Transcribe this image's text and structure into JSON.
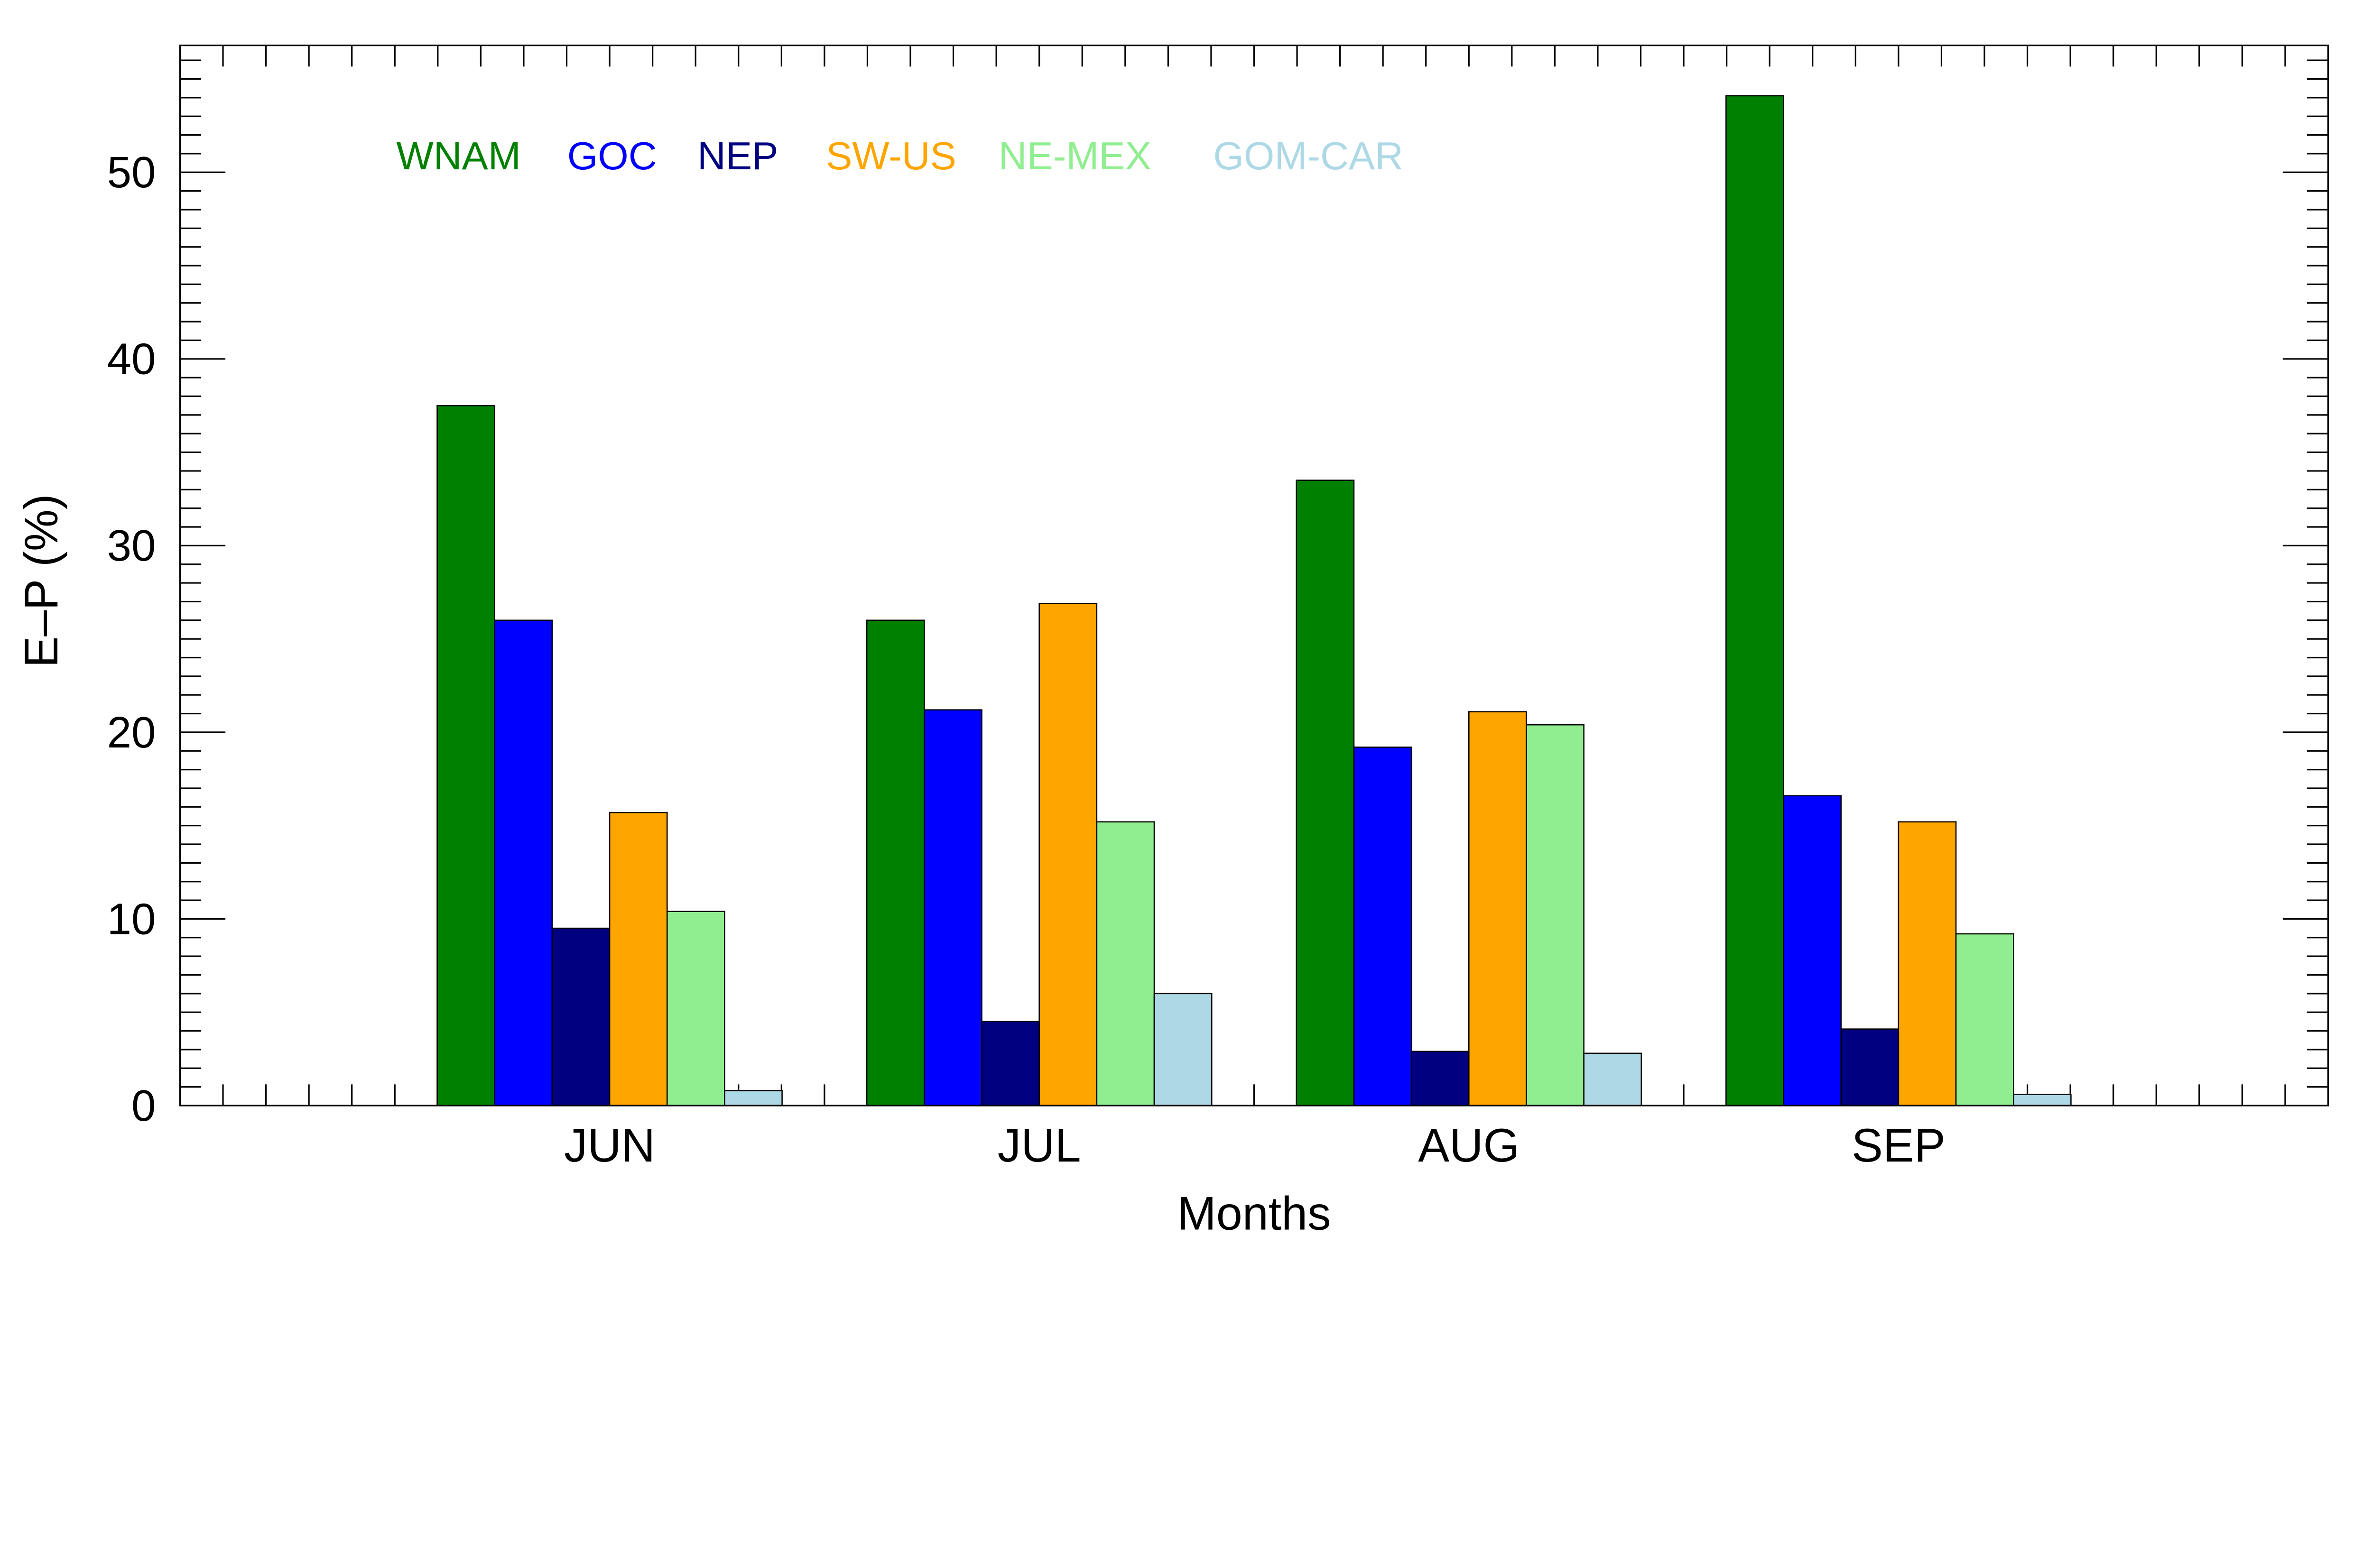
{
  "chart_data": {
    "type": "bar",
    "title": "",
    "xlabel": "Months",
    "ylabel": "E–P (%)",
    "categories": [
      "JUN",
      "JUL",
      "AUG",
      "SEP"
    ],
    "ylim": [
      0,
      56.8
    ],
    "yticks": [
      "0",
      "10",
      "20",
      "30",
      "40",
      "50"
    ],
    "legend_position": "top-left",
    "series": [
      {
        "name": "WNAM",
        "color": "#008000",
        "values": [
          37.5,
          26.0,
          33.5,
          54.1
        ]
      },
      {
        "name": "GOC",
        "color": "#0000ff",
        "values": [
          26.0,
          21.2,
          19.2,
          16.6
        ]
      },
      {
        "name": "NEP",
        "color": "#000080",
        "values": [
          9.5,
          4.5,
          2.9,
          4.1
        ]
      },
      {
        "name": "SW-US",
        "color": "#ffa500",
        "values": [
          15.7,
          26.9,
          21.1,
          15.2
        ]
      },
      {
        "name": "NE-MEX",
        "color": "#90ee90",
        "values": [
          10.4,
          15.2,
          20.4,
          9.2
        ]
      },
      {
        "name": "GOM-CAR",
        "color": "#add8e6",
        "values": [
          0.8,
          6.0,
          2.8,
          0.6
        ]
      }
    ]
  }
}
